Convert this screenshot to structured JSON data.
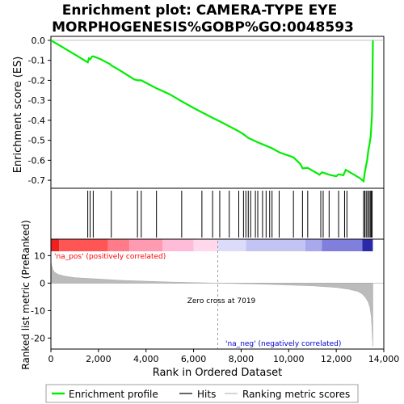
{
  "chart_data": {
    "type": "line",
    "title_line1": "Enrichment plot: CAMERA-TYPE EYE",
    "title_line2": "MORPHOGENESIS%GOBP%GO:0048593",
    "top_panel": {
      "ylabel": "Enrichment score (ES)",
      "ylim": [
        -0.74,
        0.02
      ],
      "yticks": [
        0.0,
        -0.1,
        -0.2,
        -0.3,
        -0.4,
        -0.5,
        -0.6,
        -0.7
      ],
      "ytick_labels": [
        "0.0",
        "-0.1",
        "-0.2",
        "-0.3",
        "-0.4",
        "-0.5",
        "-0.6",
        "-0.7"
      ],
      "series": [
        {
          "name": "Enrichment profile",
          "color": "#00ee00",
          "x": [
            0,
            500,
            1000,
            1550,
            1600,
            1650,
            1720,
            1780,
            2100,
            2500,
            2540,
            2900,
            3500,
            3640,
            3800,
            4200,
            4440,
            5000,
            5500,
            6000,
            6350,
            6800,
            7100,
            7500,
            7900,
            8100,
            8300,
            8700,
            9000,
            9300,
            9600,
            10200,
            10500,
            10580,
            10800,
            11300,
            11400,
            11700,
            12000,
            12100,
            12300,
            12400,
            13000,
            13150,
            13200,
            13250,
            13300,
            13350,
            13400,
            13450,
            13500,
            13520,
            13530,
            13540
          ],
          "y": [
            0.0,
            -0.035,
            -0.07,
            -0.11,
            -0.09,
            -0.095,
            -0.082,
            -0.08,
            -0.095,
            -0.12,
            -0.125,
            -0.15,
            -0.195,
            -0.2,
            -0.2,
            -0.225,
            -0.24,
            -0.27,
            -0.305,
            -0.338,
            -0.36,
            -0.388,
            -0.405,
            -0.43,
            -0.455,
            -0.47,
            -0.488,
            -0.51,
            -0.525,
            -0.54,
            -0.56,
            -0.585,
            -0.62,
            -0.64,
            -0.638,
            -0.672,
            -0.66,
            -0.672,
            -0.68,
            -0.67,
            -0.675,
            -0.648,
            -0.69,
            -0.705,
            -0.66,
            -0.63,
            -0.6,
            -0.55,
            -0.52,
            -0.48,
            -0.38,
            -0.24,
            -0.12,
            0.0
          ]
        }
      ],
      "hits_label": "Hits",
      "hits_x": [
        1550,
        1650,
        1780,
        2540,
        3640,
        3800,
        4440,
        5500,
        6350,
        6800,
        7100,
        7500,
        7900,
        8100,
        8200,
        8300,
        8400,
        8600,
        8700,
        8900,
        9050,
        9200,
        9300,
        9600,
        10200,
        10580,
        10800,
        11350,
        11450,
        11700,
        12100,
        12350,
        12450,
        13150,
        13200,
        13260,
        13320,
        13380,
        13430,
        13470,
        13510
      ]
    },
    "bottom_panel": {
      "xlabel": "Rank in Ordered Dataset",
      "ylabel": "Ranked list metric (PreRanked)",
      "xlim": [
        0,
        14000
      ],
      "ylim": [
        -24,
        16
      ],
      "xticks": [
        0,
        2000,
        4000,
        6000,
        8000,
        10000,
        12000,
        14000
      ],
      "xtick_labels": [
        "0",
        "2,000",
        "4,000",
        "6,000",
        "8,000",
        "10,000",
        "12,000",
        "14,000"
      ],
      "yticks": [
        10,
        0,
        -10,
        -20
      ],
      "ytick_labels": [
        "10",
        "0",
        "-10",
        "-20"
      ],
      "series_name": "Ranking metric scores",
      "metric_x": [
        0,
        30,
        80,
        150,
        300,
        600,
        1000,
        2000,
        3000,
        4000,
        5000,
        6000,
        7019,
        8000,
        9000,
        10000,
        11000,
        12000,
        12500,
        12900,
        13100,
        13250,
        13350,
        13420,
        13470,
        13500,
        13520,
        13540
      ],
      "metric_y": [
        8.0,
        6.5,
        5.0,
        4.0,
        3.2,
        2.5,
        2.0,
        1.5,
        1.0,
        0.7,
        0.4,
        0.2,
        0.0,
        -0.2,
        -0.4,
        -0.7,
        -1.0,
        -1.6,
        -2.2,
        -3.0,
        -4.0,
        -5.5,
        -7.0,
        -9.0,
        -12.0,
        -16.0,
        -20.0,
        -23.0
      ],
      "zero_cross_text": "Zero cross at 7019",
      "zero_cross_x": 7019,
      "pos_label": "'na_pos' (positively correlated)",
      "neg_label": "'na_neg' (negatively correlated)"
    },
    "legend": {
      "position": "bottom",
      "items": [
        "Enrichment profile",
        "Hits",
        "Ranking metric scores"
      ]
    },
    "colors": {
      "profile": "#00ee00",
      "hits": "#000000",
      "metric": "#bbbbbb",
      "pos_label": "#ff0000",
      "neg_label": "#0000cc"
    }
  }
}
